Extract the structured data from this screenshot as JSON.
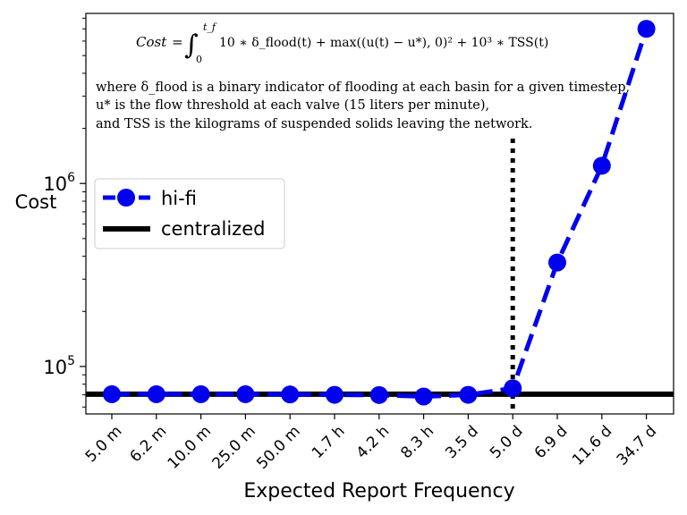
{
  "chart_data": {
    "type": "line",
    "xlabel": "Expected Report Frequency",
    "ylabel": "Cost",
    "yscale": "log",
    "ylim": [
      55000,
      8500000
    ],
    "y_major_ticks": [
      {
        "value": 100000,
        "label": "10^5"
      },
      {
        "value": 1000000,
        "label": "10^6"
      }
    ],
    "categories": [
      "5.0 m",
      "6.2 m",
      "10.0 m",
      "25.0 m",
      "50.0 m",
      "1.7 h",
      "4.2 h",
      "8.3 h",
      "3.5 d",
      "5.0 d",
      "6.9 d",
      "11.6 d",
      "34.7 d"
    ],
    "series": [
      {
        "name": "hi-fi",
        "color": "#0000ee",
        "style": "dashed line with circle markers",
        "values": [
          70500,
          70500,
          70500,
          70500,
          70300,
          70000,
          69800,
          68500,
          70000,
          76000,
          370000,
          1250000,
          7000000
        ]
      },
      {
        "name": "centralized",
        "color": "#000000",
        "style": "solid horizontal line",
        "value": 70500
      }
    ],
    "vline": {
      "at_category": "5.0 d",
      "style": "dotted",
      "color": "#000000"
    },
    "legend": {
      "placement": "center-left"
    },
    "annotation": {
      "formula_lhs": "Cost",
      "formula_rhs": "10 ∗ δ_flood(t) + max((u(t) − u*), 0)² + 10³ ∗ TSS(t)",
      "integral_lower": "0",
      "integral_upper": "t_f",
      "note_line1": "where δ_flood is a binary indicator of flooding at each basin for a given timestep,",
      "note_line2": "u* is the flow threshold at each valve (15 liters per minute),",
      "note_line3": "and TSS is the kilograms of suspended solids leaving the network."
    },
    "grid": false
  }
}
